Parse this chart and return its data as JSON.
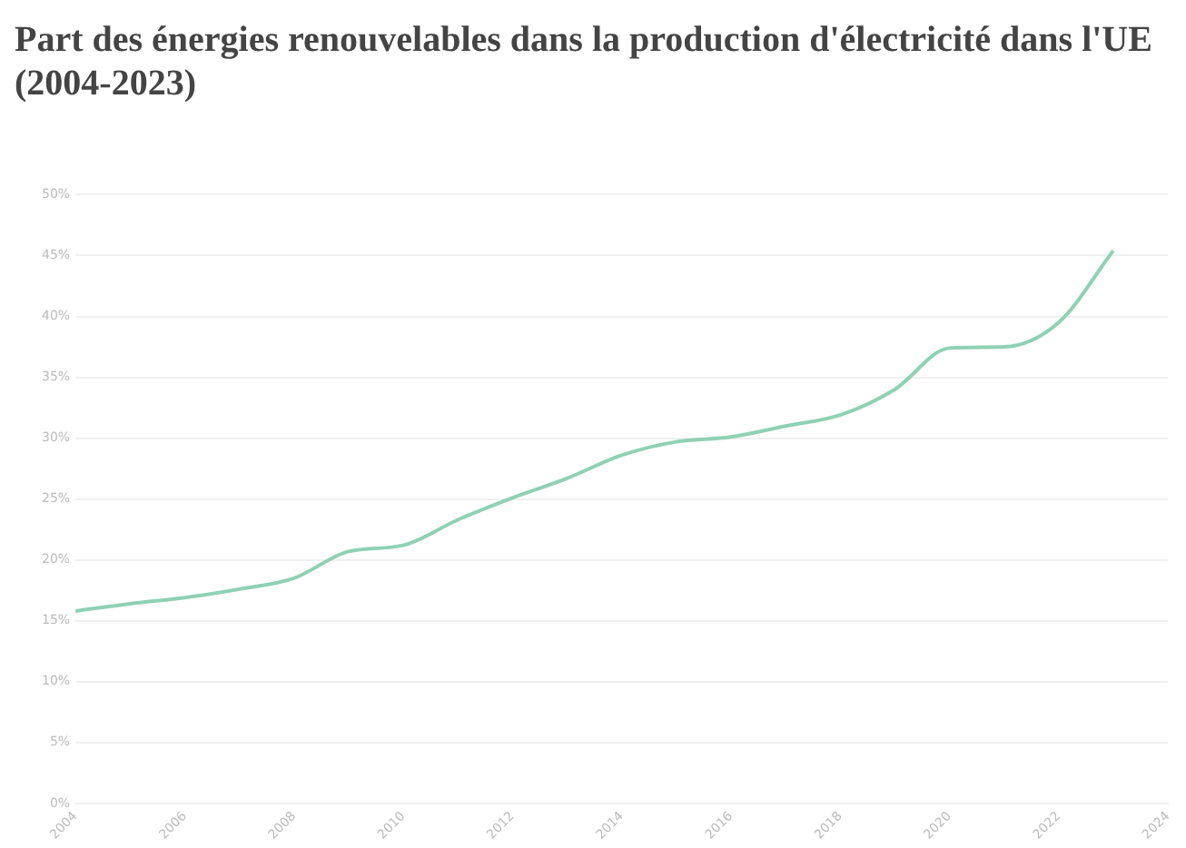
{
  "chart_data": {
    "type": "line",
    "title": "Part des énergies renouvelables dans la production d'électricité dans l'UE (2004-2023)",
    "x": [
      2004,
      2005,
      2006,
      2007,
      2008,
      2009,
      2010,
      2011,
      2012,
      2013,
      2014,
      2015,
      2016,
      2017,
      2018,
      2019,
      2020,
      2021,
      2022,
      2023
    ],
    "series": [
      {
        "color": "#8fd1b5",
        "values": [
          15.8,
          16.4,
          16.9,
          17.6,
          18.5,
          20.7,
          21.2,
          23.3,
          25.1,
          26.7,
          28.6,
          29.7,
          30.1,
          31.0,
          31.9,
          34.0,
          37.4,
          37.5,
          39.5,
          45.4
        ]
      }
    ],
    "xlim": [
      2004,
      2024
    ],
    "xticks": [
      2004,
      2006,
      2008,
      2010,
      2012,
      2014,
      2016,
      2018,
      2020,
      2022,
      2024
    ],
    "ylim": [
      0,
      50
    ],
    "yticks": [
      {
        "value": 0,
        "label": "0%"
      },
      {
        "value": 5,
        "label": "5%"
      },
      {
        "value": 10,
        "label": "10%"
      },
      {
        "value": 15,
        "label": "15%"
      },
      {
        "value": 20,
        "label": "20%"
      },
      {
        "value": 25,
        "label": "25%"
      },
      {
        "value": 30,
        "label": "30%"
      },
      {
        "value": 35,
        "label": "35%"
      },
      {
        "value": 40,
        "label": "40%"
      },
      {
        "value": 45,
        "label": "45%"
      },
      {
        "value": 50,
        "label": "50%"
      }
    ],
    "grid": "y",
    "legend": false,
    "marker": "none",
    "line_style": "solid"
  }
}
